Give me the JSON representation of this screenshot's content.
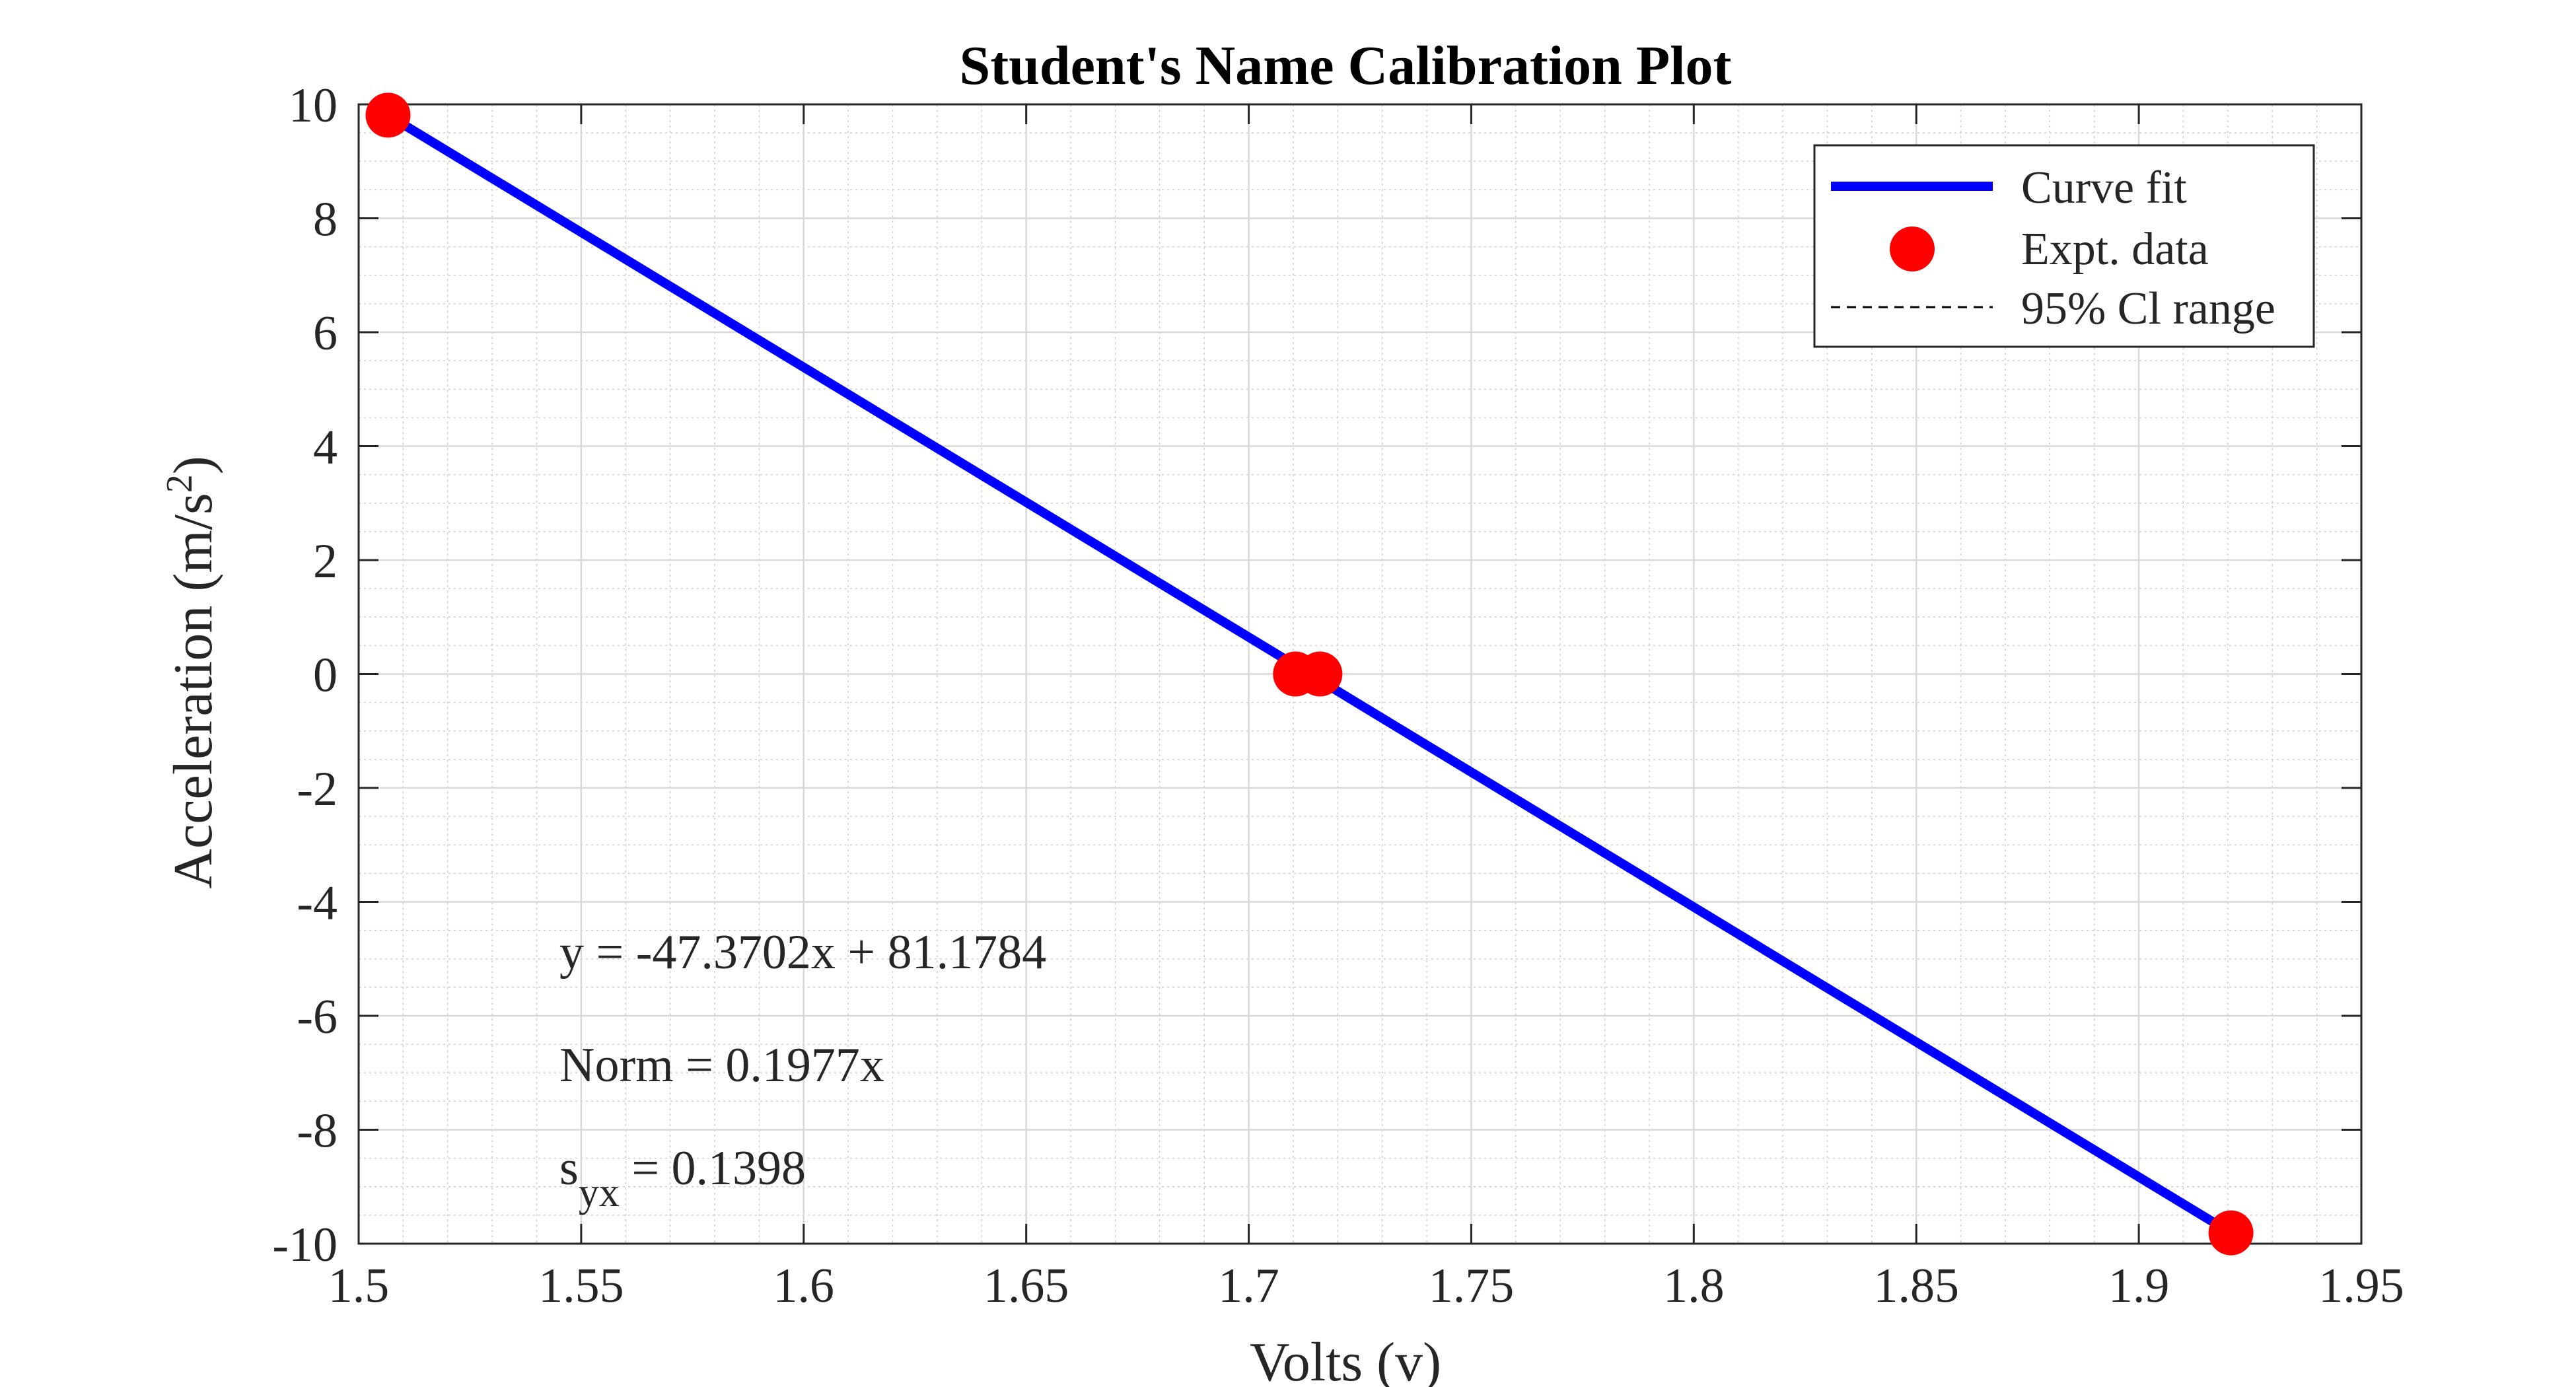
{
  "chart_data": {
    "type": "line",
    "title": "Student's Name Calibration Plot",
    "xlabel": "Volts (v)",
    "ylabel_main": "Acceleration (m/s",
    "ylabel_sup": "2",
    "ylabel_close": ")",
    "xlim": [
      1.5,
      1.95
    ],
    "ylim": [
      -10,
      10
    ],
    "xticks": [
      1.5,
      1.55,
      1.6,
      1.65,
      1.7,
      1.75,
      1.8,
      1.85,
      1.9,
      1.95
    ],
    "xtick_labels": [
      "1.5",
      "1.55",
      "1.6",
      "1.65",
      "1.7",
      "1.75",
      "1.8",
      "1.85",
      "1.9",
      "1.95"
    ],
    "yticks": [
      -10,
      -8,
      -6,
      -4,
      -2,
      0,
      2,
      4,
      6,
      8,
      10
    ],
    "ytick_labels": [
      "-10",
      "-8",
      "-6",
      "-4",
      "-2",
      "0",
      "2",
      "4",
      "6",
      "8",
      "10"
    ],
    "grid": true,
    "minor_grid": true,
    "legend_position": "top-right",
    "series": [
      {
        "name": "Curve fit",
        "kind": "line",
        "color": "#0000ff",
        "x": [
          1.5066,
          1.9207
        ],
        "y": [
          9.81,
          -9.81
        ]
      },
      {
        "name": "Expt. data",
        "kind": "scatter",
        "color": "#ff0000",
        "x": [
          1.5066,
          1.7105,
          1.716,
          1.9207
        ],
        "y": [
          9.81,
          0.0,
          0.0,
          -9.81
        ]
      },
      {
        "name": "95% Cl range",
        "kind": "dashed-line",
        "color": "#000000"
      }
    ],
    "annotations": {
      "equation": "y = -47.3702x + 81.1784",
      "norm": "Norm = 0.1977x",
      "syx_base": "s",
      "syx_sub": "yx",
      "syx_value": " = 0.1398"
    }
  }
}
